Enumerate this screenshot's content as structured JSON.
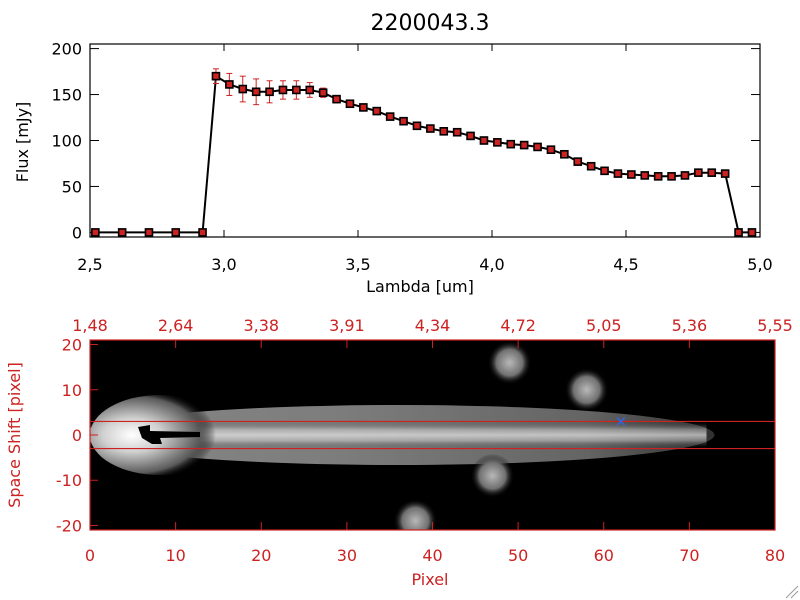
{
  "chart_data": [
    {
      "type": "line",
      "title": "2200043.3",
      "xlabel": "Lambda [um]",
      "ylabel": "Flux [mJy]",
      "xlim": [
        2.5,
        5.0
      ],
      "ylim": [
        -5,
        205
      ],
      "xticks": [
        2.5,
        3.0,
        3.5,
        4.0,
        4.5,
        5.0
      ],
      "xtick_labels": [
        "2,5",
        "3,0",
        "3,5",
        "4,0",
        "4,5",
        "5,0"
      ],
      "yticks": [
        0,
        50,
        100,
        150,
        200
      ],
      "ytick_labels": [
        "0",
        "50",
        "100",
        "150",
        "200"
      ],
      "grid": false,
      "colors": {
        "line": "#000000",
        "marker": "#cc2222",
        "errorbar": "#cc2222"
      },
      "series": [
        {
          "x": [
            2.52,
            2.62,
            2.72,
            2.82,
            2.92,
            2.97,
            3.02,
            3.07,
            3.12,
            3.17,
            3.22,
            3.27,
            3.32,
            3.37,
            3.42,
            3.47,
            3.52,
            3.57,
            3.62,
            3.67,
            3.72,
            3.77,
            3.82,
            3.87,
            3.92,
            3.97,
            4.02,
            4.07,
            4.12,
            4.17,
            4.22,
            4.27,
            4.32,
            4.37,
            4.42,
            4.47,
            4.52,
            4.57,
            4.62,
            4.67,
            4.72,
            4.77,
            4.82,
            4.87,
            4.92,
            4.97
          ],
          "y": [
            0,
            0,
            0,
            0,
            0,
            170,
            161,
            156,
            153,
            153,
            155,
            155,
            155,
            152,
            145,
            140,
            136,
            132,
            126,
            121,
            116,
            113,
            110,
            109,
            105,
            100,
            98,
            96,
            95,
            93,
            90,
            85,
            77,
            72,
            67,
            64,
            63,
            62,
            61,
            61,
            62,
            65,
            65,
            64,
            0,
            0
          ],
          "yerr": [
            0,
            0,
            0,
            0,
            0,
            8,
            12,
            14,
            14,
            12,
            10,
            10,
            8,
            5,
            4,
            3,
            3,
            3,
            2,
            2,
            2,
            2,
            2,
            2,
            2,
            2,
            2,
            2,
            2,
            2,
            2,
            2,
            2,
            2,
            2,
            2,
            2,
            2,
            2,
            2,
            2,
            2,
            2,
            2,
            0,
            0
          ]
        }
      ]
    },
    {
      "type": "heatmap",
      "xlabel": "Pixel",
      "ylabel": "Space Shift [pixel]",
      "xlim": [
        0,
        80
      ],
      "ylim": [
        -21,
        21
      ],
      "xticks": [
        0,
        10,
        20,
        30,
        40,
        50,
        60,
        70,
        80
      ],
      "xtick_labels": [
        "0",
        "10",
        "20",
        "30",
        "40",
        "50",
        "60",
        "70",
        "80"
      ],
      "yticks": [
        -20,
        -10,
        0,
        10,
        20
      ],
      "ytick_labels": [
        "-20",
        "-10",
        "0",
        "10",
        "20"
      ],
      "top_axis_labels": [
        "1,48",
        "2,64",
        "3,38",
        "3,91",
        "4,34",
        "4,72",
        "5,05",
        "5,36",
        "5,55"
      ],
      "horizontal_lines": [
        3,
        -3
      ],
      "marker": {
        "x": 62,
        "y": 3,
        "color": "#3366dd"
      },
      "colors": {
        "axis": "#cc2222",
        "lines": "#cc2222",
        "background": "#000000"
      },
      "description_blobs": [
        {
          "kind": "trace",
          "x_start": 0,
          "x_end": 72,
          "y": 0
        },
        {
          "kind": "blob",
          "x": 58,
          "y": 10
        },
        {
          "kind": "blob",
          "x": 47,
          "y": -9
        },
        {
          "kind": "blob",
          "x": 38,
          "y": -19
        },
        {
          "kind": "blob",
          "x": 49,
          "y": 16
        }
      ]
    }
  ]
}
